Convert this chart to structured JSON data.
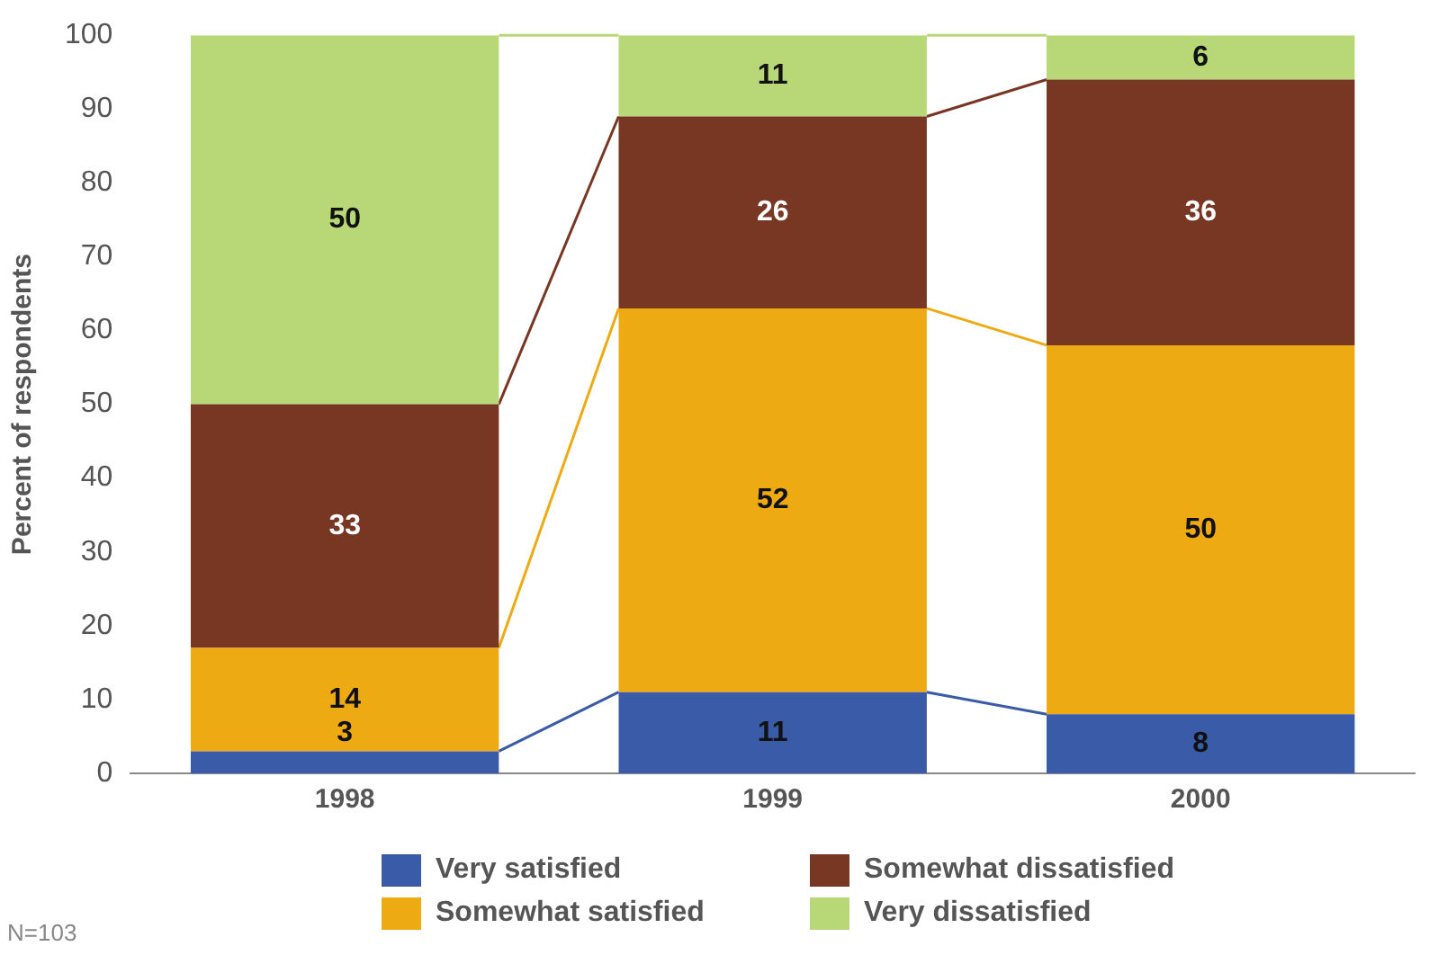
{
  "chart_data": {
    "type": "bar",
    "stacked": true,
    "ylabel": "Percent of respondents",
    "categories": [
      "1998",
      "1999",
      "2000"
    ],
    "series": [
      {
        "name": "Very satisfied",
        "color": "#3a5ba8",
        "values": [
          3,
          11,
          8
        ]
      },
      {
        "name": "Somewhat satisfied",
        "color": "#eeaa13",
        "values": [
          14,
          52,
          50
        ]
      },
      {
        "name": "Somewhat dissatisfied",
        "color": "#773723",
        "values": [
          33,
          26,
          36
        ]
      },
      {
        "name": "Very dissatisfied",
        "color": "#b8d878",
        "values": [
          50,
          11,
          6
        ]
      }
    ],
    "ylim": [
      0,
      100
    ],
    "yticks": [
      0,
      10,
      20,
      30,
      40,
      50,
      60,
      70,
      80,
      90,
      100
    ],
    "grid": false,
    "legend": "bottom",
    "data_labels": true,
    "annotations": [
      "N=103"
    ]
  }
}
